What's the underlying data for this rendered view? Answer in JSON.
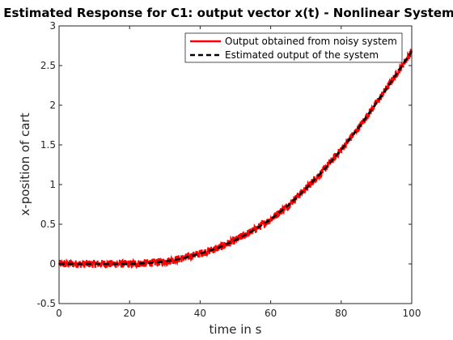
{
  "chart_data": {
    "type": "line",
    "title": "Estimated Response for C1: output vector x(t) - Nonlinear System",
    "xlabel": "time in s",
    "ylabel": "x-position of cart",
    "xlim": [
      0,
      100
    ],
    "ylim": [
      -0.5,
      3
    ],
    "xticks": [
      "0",
      "20",
      "40",
      "60",
      "80",
      "100"
    ],
    "yticks": [
      "-0.5",
      "0",
      "0.5",
      "1",
      "1.5",
      "2",
      "2.5",
      "3"
    ],
    "grid": false,
    "legend_position": "top-right",
    "series": [
      {
        "name": "Output obtained from noisy system",
        "color": "#ff0000",
        "style": "solid",
        "noise_amplitude": 0.05,
        "x": [
          0,
          10,
          20,
          25,
          30,
          35,
          40,
          45,
          50,
          55,
          60,
          65,
          70,
          75,
          80,
          85,
          90,
          95,
          100
        ],
        "y": [
          0,
          0,
          0,
          0.01,
          0.03,
          0.07,
          0.13,
          0.2,
          0.3,
          0.42,
          0.56,
          0.74,
          0.95,
          1.18,
          1.44,
          1.72,
          2.03,
          2.35,
          2.68
        ]
      },
      {
        "name": "Estimated output of the system",
        "color": "#000000",
        "style": "dashed",
        "x": [
          0,
          10,
          20,
          25,
          30,
          35,
          40,
          45,
          50,
          55,
          60,
          65,
          70,
          75,
          80,
          85,
          90,
          95,
          100
        ],
        "y": [
          0,
          0,
          0,
          0.01,
          0.03,
          0.07,
          0.13,
          0.2,
          0.3,
          0.42,
          0.56,
          0.74,
          0.95,
          1.18,
          1.44,
          1.72,
          2.03,
          2.35,
          2.68
        ]
      }
    ]
  }
}
